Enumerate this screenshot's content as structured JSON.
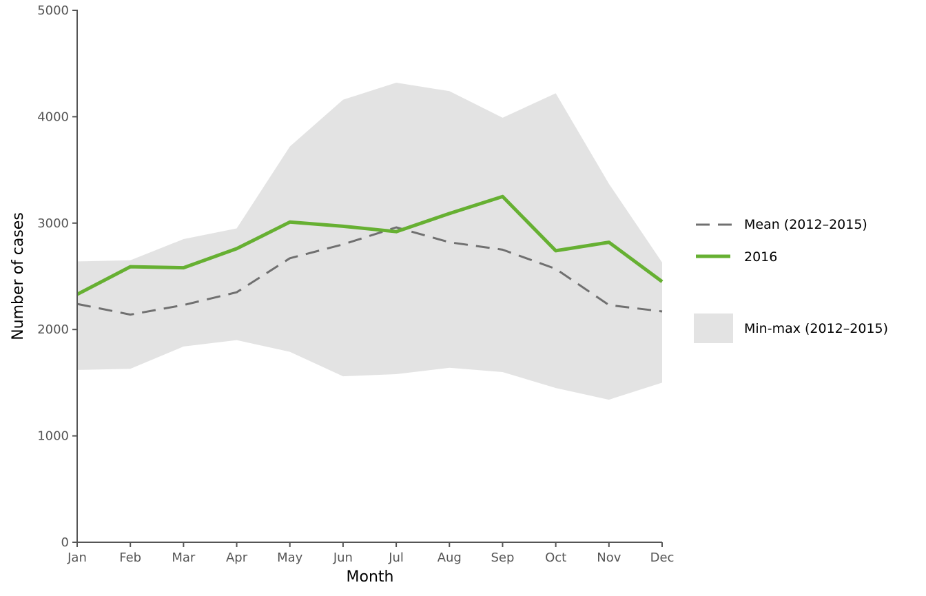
{
  "chart_data": {
    "type": "line",
    "title": "",
    "xlabel": "Month",
    "ylabel": "Number of cases",
    "categories": [
      "Jan",
      "Feb",
      "Mar",
      "Apr",
      "May",
      "Jun",
      "Jul",
      "Aug",
      "Sep",
      "Oct",
      "Nov",
      "Dec"
    ],
    "ylim": [
      0,
      5000
    ],
    "yticks": [
      0,
      1000,
      2000,
      3000,
      4000,
      5000
    ],
    "grid": false,
    "legend_position": "right",
    "band": {
      "name": "Min-max (2012–2015)",
      "min": [
        1620,
        1630,
        1840,
        1900,
        1790,
        1560,
        1580,
        1640,
        1600,
        1450,
        1340,
        1500
      ],
      "max": [
        2640,
        2650,
        2850,
        2950,
        3720,
        4160,
        4320,
        4240,
        3990,
        4220,
        3370,
        2630
      ],
      "color": "#e3e3e3"
    },
    "series": [
      {
        "name": "Mean (2012–2015)",
        "values": [
          2240,
          2140,
          2230,
          2350,
          2670,
          2800,
          2960,
          2820,
          2750,
          2570,
          2230,
          2170
        ],
        "color": "#707070",
        "style": "dashed"
      },
      {
        "name": "2016",
        "values": [
          2330,
          2590,
          2580,
          2760,
          3010,
          2970,
          2920,
          3090,
          3250,
          2740,
          2820,
          2450
        ],
        "color": "#66b032",
        "style": "solid"
      }
    ]
  }
}
